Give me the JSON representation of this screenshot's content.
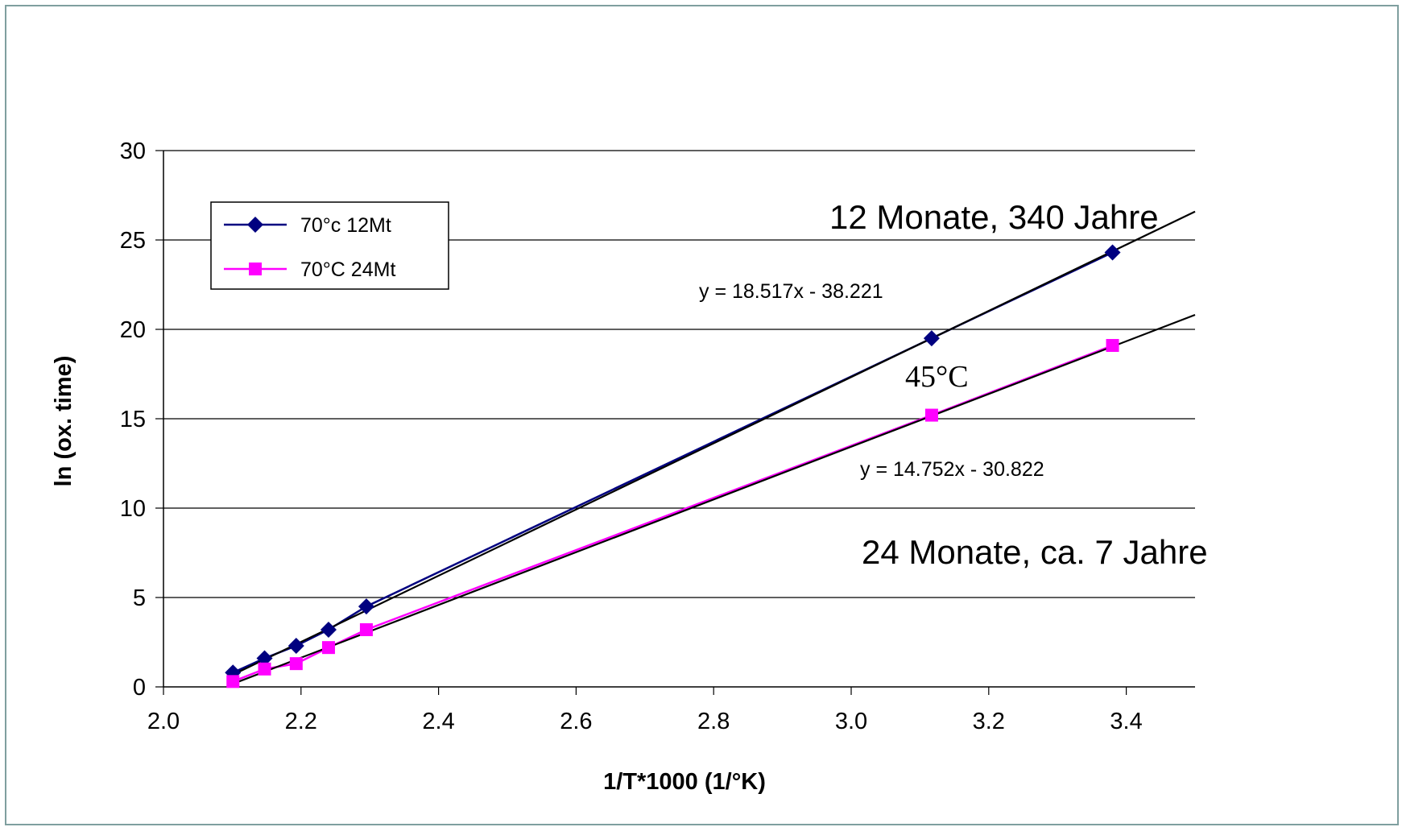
{
  "chart_data": {
    "type": "scatter",
    "xlabel": "1/T*1000  (1/°K)",
    "ylabel": "ln (ox. time)",
    "xlim": [
      2.0,
      3.5
    ],
    "ylim": [
      0,
      30
    ],
    "x_ticks": [
      "2.0",
      "2.2",
      "2.4",
      "2.6",
      "2.8",
      "3.0",
      "3.2",
      "3.4"
    ],
    "y_ticks": [
      "0",
      "5",
      "10",
      "15",
      "20",
      "25",
      "30"
    ],
    "grid": "horizontal",
    "legend_position": "top-left",
    "series": [
      {
        "name": "70°c  12Mt",
        "color": "#000080",
        "marker": "diamond",
        "x": [
          2.101,
          2.147,
          2.193,
          2.24,
          2.295,
          3.117,
          3.38
        ],
        "y": [
          0.8,
          1.6,
          2.3,
          3.2,
          4.5,
          19.5,
          24.3
        ]
      },
      {
        "name": "70°C  24Mt",
        "color": "#ff00ff",
        "marker": "square",
        "x": [
          2.101,
          2.147,
          2.193,
          2.24,
          2.295,
          3.117,
          3.38
        ],
        "y": [
          0.3,
          1.0,
          1.3,
          2.2,
          3.2,
          15.2,
          19.1
        ]
      }
    ],
    "trendlines": [
      {
        "slope": 18.517,
        "intercept": -38.221,
        "x_range": [
          2.101,
          3.5
        ],
        "label": "y = 18.517x - 38.221"
      },
      {
        "slope": 14.752,
        "intercept": -30.822,
        "x_range": [
          2.101,
          3.5
        ],
        "label": "y = 14.752x - 30.822"
      }
    ],
    "annotations": [
      "12 Monate, 340 Jahre",
      "45°C",
      "24 Monate, ca. 7 Jahre"
    ]
  }
}
